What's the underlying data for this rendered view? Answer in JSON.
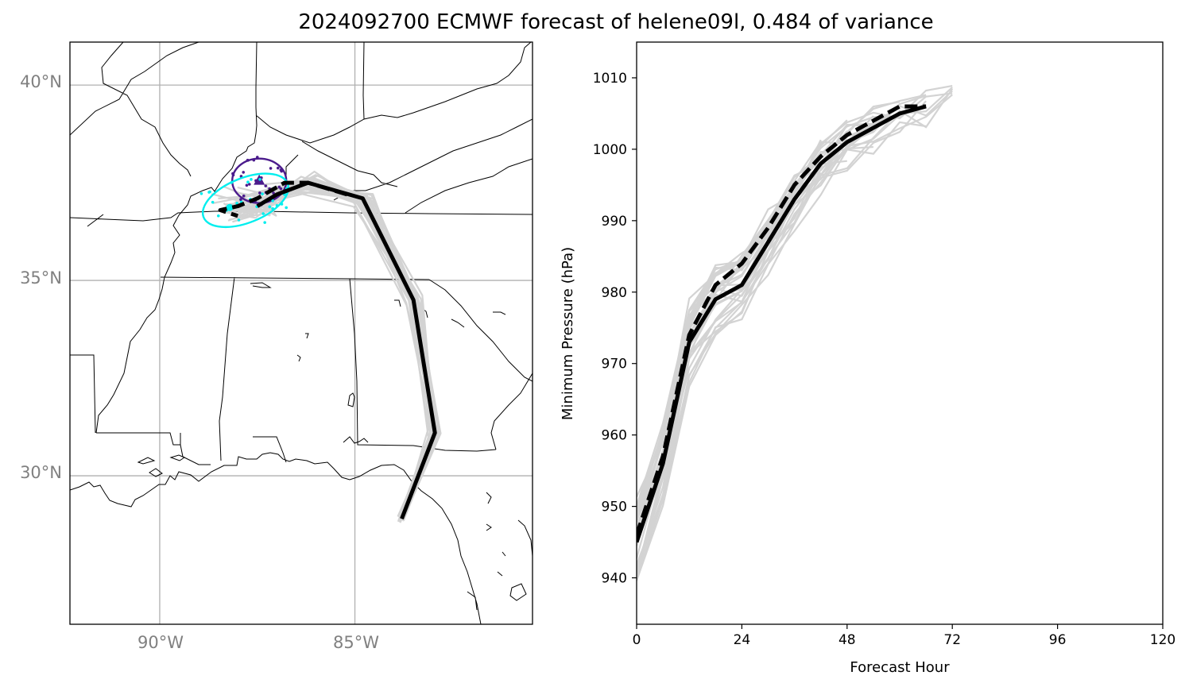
{
  "figure": {
    "title": "2024092700 ECMWF forecast of helene09l, 0.484 of variance"
  },
  "map": {
    "lon_range": [
      -92.3,
      -80.45
    ],
    "lat_range": [
      26.2,
      41.1
    ],
    "lon_ticks": [
      -90,
      -85
    ],
    "lon_tick_labels": [
      "90°W",
      "85°W"
    ],
    "lat_ticks": [
      30,
      35,
      40
    ],
    "lat_tick_labels": [
      "30°N",
      "35°N",
      "40°N"
    ],
    "gridlines": true,
    "colors": {
      "members": "#d3d3d3",
      "mean_track": "#000000",
      "ellipse_1": "#4b1b8c",
      "ellipse_2": "#00eeee",
      "borders": "#000000"
    }
  },
  "chart_data": [
    {
      "type": "line",
      "panel": "track map",
      "series": [
        {
          "style": "solid",
          "lon": [
            -83.8,
            -82.95,
            -83.5,
            -84.8,
            -86.2,
            -87.0,
            -87.5
          ],
          "lat": [
            28.9,
            31.1,
            34.5,
            37.1,
            37.5,
            37.2,
            36.9
          ]
        },
        {
          "style": "dashed",
          "lon": [
            -85.2,
            -86.2,
            -86.8,
            -87.5,
            -88.0,
            -88.45,
            -88.0
          ],
          "lat": [
            37.2,
            37.5,
            37.5,
            37.1,
            36.9,
            36.8,
            36.65
          ]
        }
      ],
      "ellipses": [
        {
          "color": "#4b1b8c",
          "center": [
            -87.45,
            37.55
          ],
          "marker": "triangle"
        },
        {
          "color": "#00eeee",
          "center": [
            -87.8,
            37.05
          ],
          "marker": "circle"
        }
      ]
    },
    {
      "type": "line",
      "panel": "intensity",
      "xlabel": "Forecast Hour",
      "ylabel": "Minimum Pressure (hPa)",
      "xlim": [
        0,
        120
      ],
      "ylim": [
        933.5,
        1015
      ],
      "xticks": [
        0,
        24,
        48,
        72,
        96,
        120
      ],
      "yticks": [
        940,
        950,
        960,
        970,
        980,
        990,
        1000,
        1010
      ],
      "series": [
        {
          "style": "solid",
          "x": [
            0,
            6,
            12,
            18,
            24,
            30,
            36,
            42,
            48,
            54,
            60,
            66
          ],
          "y": [
            945,
            956,
            973,
            979,
            981,
            987,
            993,
            998,
            1001,
            1003,
            1005,
            1006
          ]
        },
        {
          "style": "dashed",
          "x": [
            0,
            6,
            12,
            18,
            24,
            30,
            36,
            42,
            48,
            54,
            60,
            66
          ],
          "y": [
            946,
            957,
            974,
            981,
            984,
            989,
            995,
            999,
            1002,
            1004,
            1006,
            1006
          ]
        }
      ]
    }
  ]
}
